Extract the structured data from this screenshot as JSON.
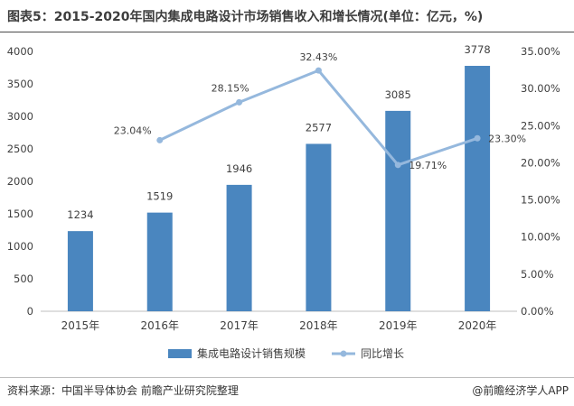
{
  "title": "图表5：2015-2020年国内集成电路设计市场销售收入和增长情况(单位：亿元，%)",
  "footer": {
    "source": "资料来源：中国半导体协会 前瞻产业研究院整理",
    "credit": "@前瞻经济学人APP"
  },
  "colors": {
    "bar": "#4a86bf",
    "line": "#95b8dd",
    "text": "#404040"
  },
  "chart_data": {
    "type": "bar",
    "categories": [
      "2015年",
      "2016年",
      "2017年",
      "2018年",
      "2019年",
      "2020年"
    ],
    "series": [
      {
        "name": "集成电路设计销售规模",
        "type": "bar",
        "axis": "left",
        "values": [
          1234,
          1519,
          1946,
          2577,
          3085,
          3778
        ]
      },
      {
        "name": "同比增长",
        "type": "line",
        "axis": "right",
        "values": [
          null,
          23.04,
          28.15,
          32.43,
          19.71,
          23.3
        ],
        "labels": [
          "",
          "23.04%",
          "28.15%",
          "32.43%",
          "19.71%",
          "23.30%"
        ]
      }
    ],
    "y_left": {
      "ticks": [
        0,
        500,
        1000,
        1500,
        2000,
        2500,
        3000,
        3500,
        4000
      ],
      "ylim": [
        0,
        4000
      ]
    },
    "y_right": {
      "ticks": [
        0,
        5,
        10,
        15,
        20,
        25,
        30,
        35
      ],
      "tick_labels": [
        "0.00%",
        "5.00%",
        "10.00%",
        "15.00%",
        "20.00%",
        "25.00%",
        "30.00%",
        "35.00%"
      ],
      "ylim": [
        0,
        35
      ]
    },
    "legend_position": "bottom"
  }
}
